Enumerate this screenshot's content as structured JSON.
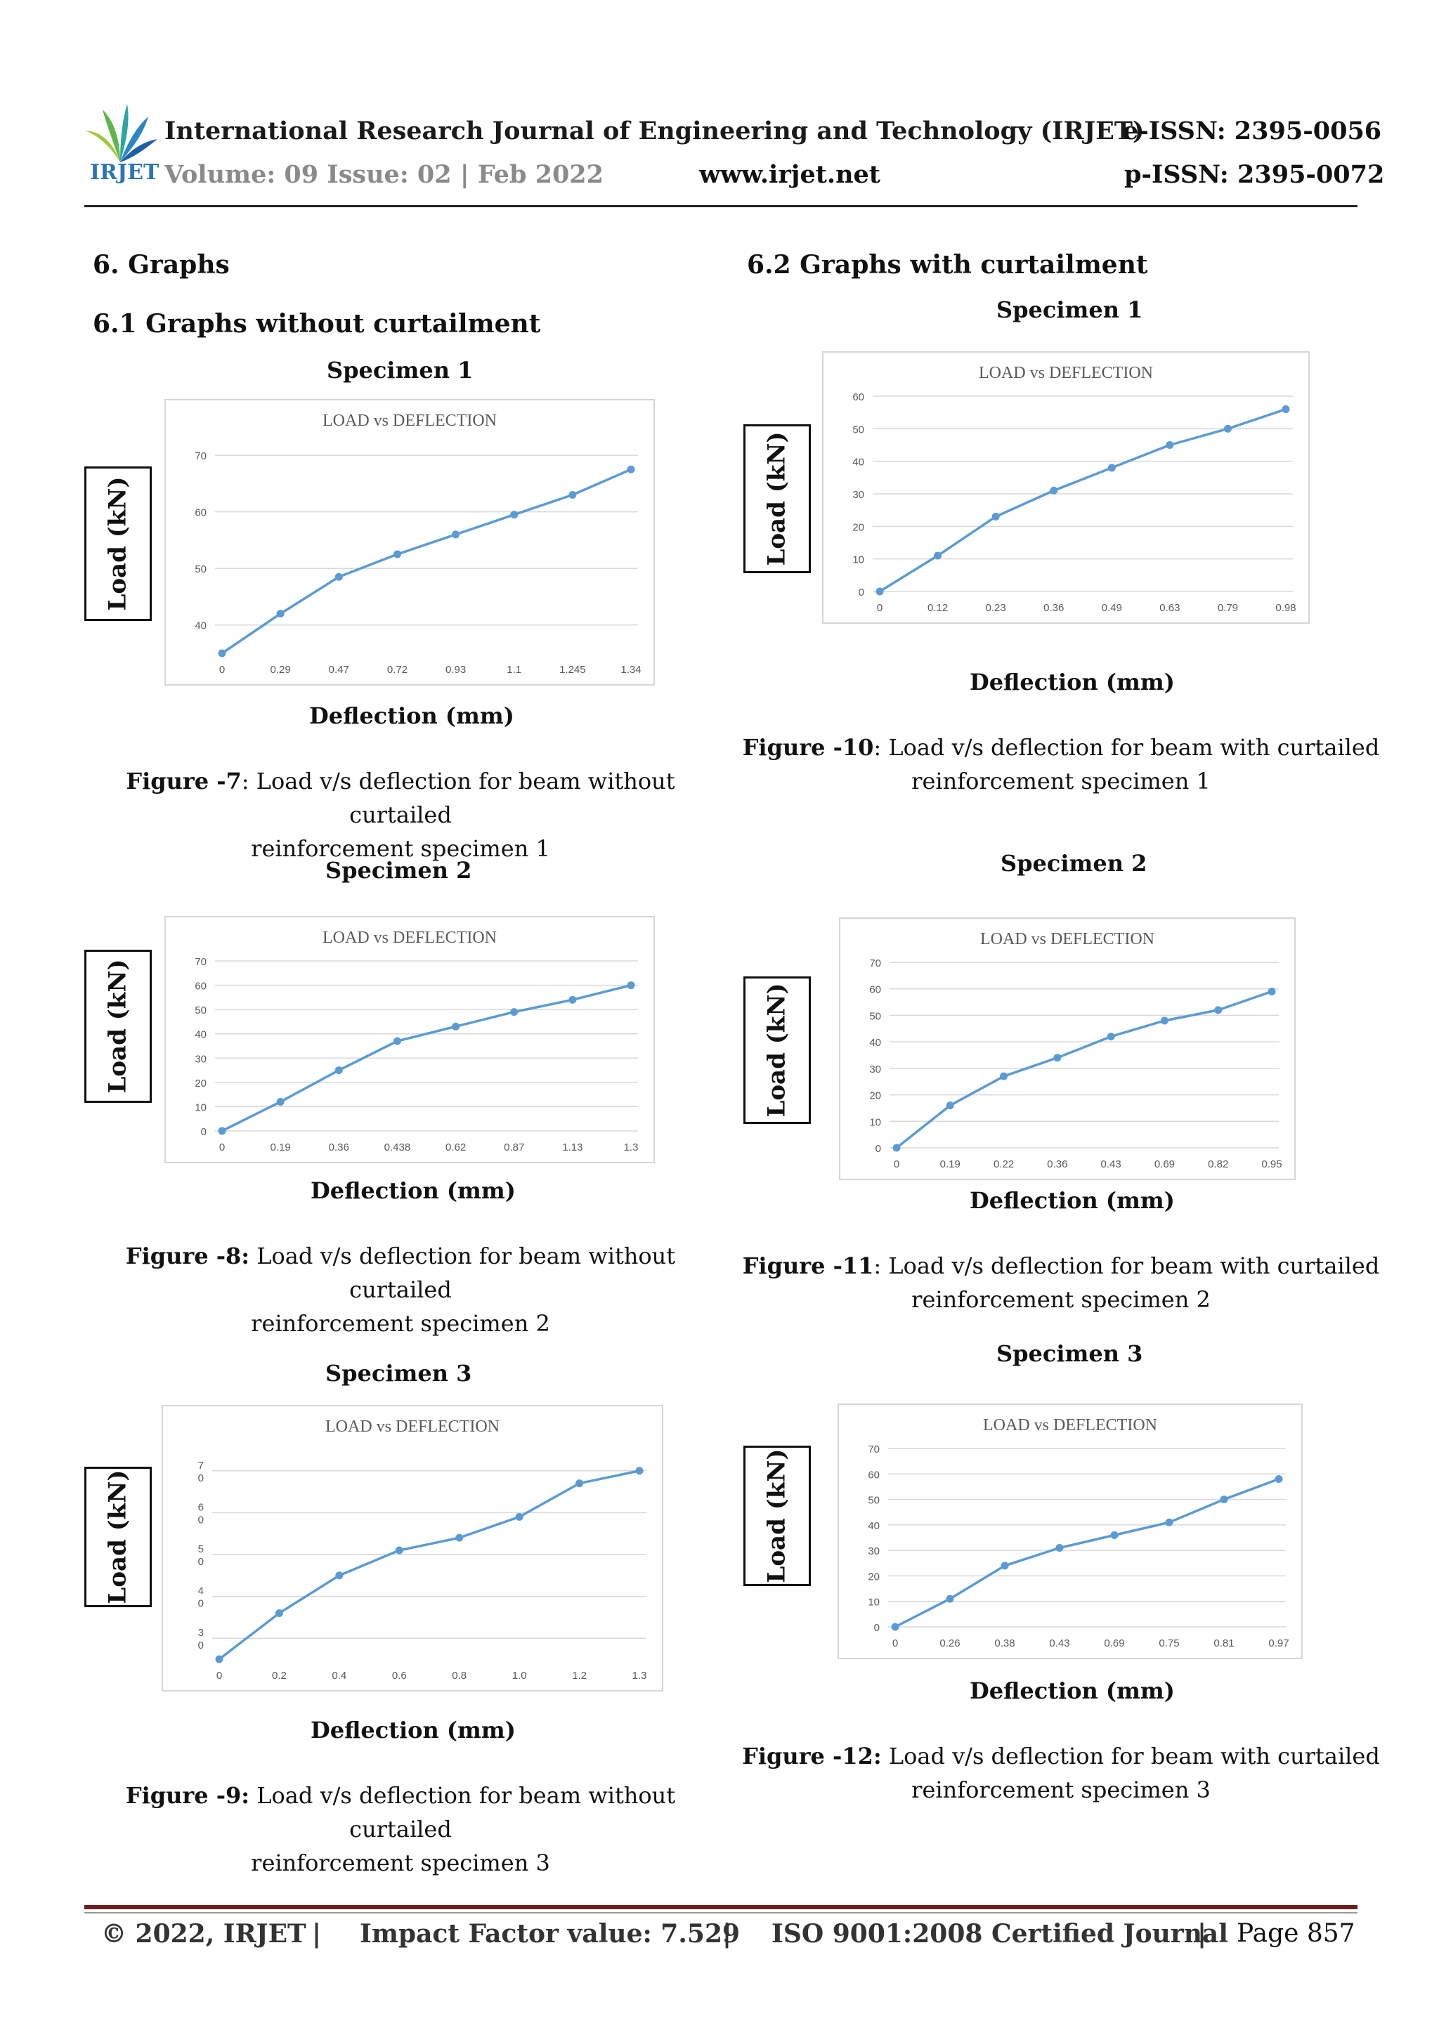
{
  "header": {
    "journal_title": "International Research Journal of Engineering and Technology (IRJET)",
    "e_issn": "e-ISSN: 2395-0056",
    "volume": "Volume: 09 Issue: 02 | Feb 2022",
    "website": "www.irjet.net",
    "p_issn": "p-ISSN: 2395-0072",
    "logo_text": "IRJET",
    "brand_color": "#2b74b8"
  },
  "sections": {
    "graphs": "6. Graphs",
    "without": "6.1 Graphs without curtailment",
    "with": "6.2 Graphs with curtailment"
  },
  "common": {
    "y_axis_label": "Load  (kN)",
    "y_axis_label_b": "Load (kN)",
    "x_axis_label": "Deflection (mm)"
  },
  "panels": [
    {
      "specimen": "Specimen 1",
      "figure_label": "Figure -7",
      "figure_sep": ": ",
      "caption_line1": "Load v/s deflection for beam without curtailed",
      "caption_line2": "reinforcement specimen 1"
    },
    {
      "specimen": "Specimen 2",
      "figure_label": "Figure -8:",
      "figure_sep": " ",
      "caption_line1": "Load v/s deflection for beam without curtailed",
      "caption_line2": "reinforcement specimen 2"
    },
    {
      "specimen": "Specimen 3",
      "figure_label": "Figure -9:",
      "figure_sep": " ",
      "caption_line1": "Load v/s deflection for beam without curtailed",
      "caption_line2": "reinforcement specimen 3"
    },
    {
      "specimen": "Specimen 1",
      "figure_label": "Figure -10",
      "figure_sep": ": ",
      "caption_line1": "Load v/s deflection for beam with curtailed",
      "caption_line2": "reinforcement specimen 1"
    },
    {
      "specimen": "Specimen 2",
      "figure_label": "Figure -11",
      "figure_sep": ": ",
      "caption_line1": "Load v/s deflection for beam with curtailed",
      "caption_line2": "reinforcement specimen 2"
    },
    {
      "specimen": "Specimen 3",
      "figure_label": "Figure -12:",
      "figure_sep": " ",
      "caption_line1": "Load v/s deflection for beam with curtailed",
      "caption_line2": "reinforcement specimen 3"
    }
  ],
  "chart_data": [
    {
      "type": "line",
      "title": "LOAD vs DEFLECTION",
      "categories": [
        "0",
        "0.29",
        "0.47",
        "0.72",
        "0.93",
        "1.1",
        "1.245",
        "1.34"
      ],
      "values": [
        35,
        42,
        48.5,
        52.5,
        56,
        59.5,
        63,
        67.5
      ],
      "yticks": [
        "70",
        "60",
        "50",
        "40"
      ],
      "ylim": [
        35,
        72
      ],
      "ytick_values": [
        70,
        60,
        50,
        40
      ],
      "color": "#5b9bd5"
    },
    {
      "type": "line",
      "title": "LOAD vs DEFLECTION",
      "categories": [
        "0",
        "0.19",
        "0.36",
        "0.438",
        "0.62",
        "0.87",
        "1.13",
        "1.3"
      ],
      "values": [
        0,
        12,
        25,
        37,
        43,
        49,
        54,
        60
      ],
      "yticks": [
        "70",
        "60",
        "50",
        "40",
        "30",
        "20",
        "10",
        "0"
      ],
      "ylim": [
        0,
        70
      ],
      "ytick_values": [
        70,
        60,
        50,
        40,
        30,
        20,
        10,
        0
      ],
      "color": "#5b9bd5"
    },
    {
      "type": "line",
      "title": "LOAD vs DEFLECTION",
      "categories": [
        "0",
        "0.2",
        "0.4",
        "0.6",
        "0.8",
        "1.0",
        "1.2",
        "1.3"
      ],
      "values": [
        25,
        36,
        45,
        51,
        54,
        59,
        67,
        70
      ],
      "yticks": [
        "7\n0",
        "6\n0",
        "5\n0",
        "4\n0",
        "3\n0"
      ],
      "ylim": [
        25,
        75
      ],
      "ytick_values": [
        70,
        60,
        50,
        40,
        30
      ],
      "color": "#5b9bd5"
    },
    {
      "type": "line",
      "title": "LOAD vs DEFLECTION",
      "categories": [
        "0",
        "0.12",
        "0.23",
        "0.36",
        "0.49",
        "0.63",
        "0.79",
        "0.98"
      ],
      "values": [
        0,
        11,
        23,
        31,
        38,
        45,
        50,
        56
      ],
      "yticks": [
        "60",
        "50",
        "40",
        "30",
        "20",
        "10",
        "0"
      ],
      "ylim": [
        0,
        60
      ],
      "ytick_values": [
        60,
        50,
        40,
        30,
        20,
        10,
        0
      ],
      "color": "#5b9bd5"
    },
    {
      "type": "line",
      "title": "LOAD vs DEFLECTION",
      "categories": [
        "0",
        "0.19",
        "0.22",
        "0.36",
        "0.43",
        "0.69",
        "0.82",
        "0.95"
      ],
      "values": [
        0,
        16,
        27,
        34,
        42,
        48,
        52,
        59
      ],
      "yticks": [
        "70",
        "60",
        "50",
        "40",
        "30",
        "20",
        "10",
        "0"
      ],
      "ylim": [
        0,
        70
      ],
      "ytick_values": [
        70,
        60,
        50,
        40,
        30,
        20,
        10,
        0
      ],
      "color": "#5b9bd5"
    },
    {
      "type": "line",
      "title": "LOAD vs DEFLECTION",
      "categories": [
        "0",
        "0.26",
        "0.38",
        "0.43",
        "0.69",
        "0.75",
        "0.81",
        "0.97"
      ],
      "values": [
        0,
        11,
        24,
        31,
        36,
        41,
        50,
        58
      ],
      "yticks": [
        "70",
        "60",
        "50",
        "40",
        "30",
        "20",
        "10",
        "0"
      ],
      "ylim": [
        0,
        70
      ],
      "ytick_values": [
        70,
        60,
        50,
        40,
        30,
        20,
        10,
        0
      ],
      "color": "#5b9bd5"
    }
  ],
  "footer": {
    "copyright": "© 2022, IRJET",
    "sep": "|",
    "impact": "Impact Factor value: 7.529",
    "iso": "ISO 9001:2008 Certified Journal",
    "page": "Page 857"
  }
}
